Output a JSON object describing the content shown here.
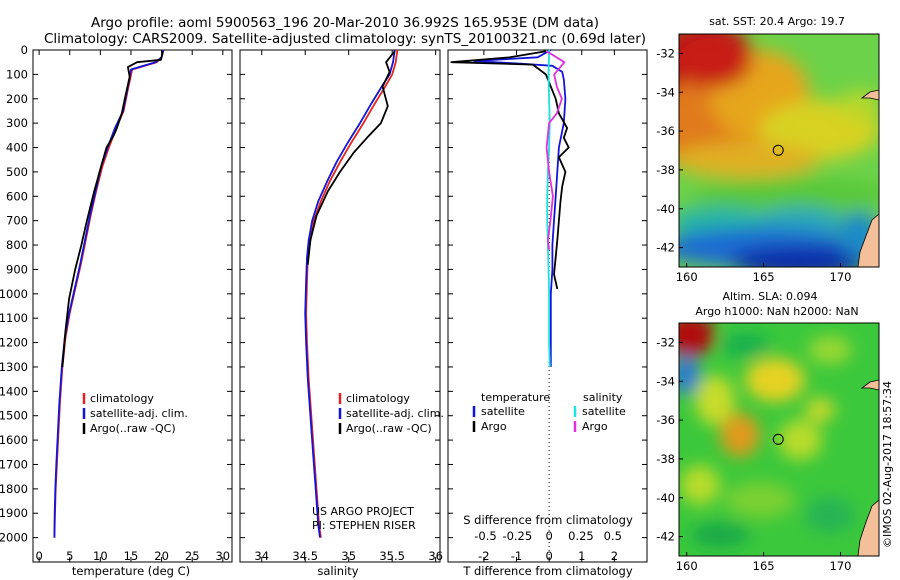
{
  "header": {
    "line1": "Argo profile: aoml 5900563_196 20-Mar-2010 36.992S 165.953E (DM data)",
    "line2": "Climatology: CARS2009. Satellite-adjusted climatology: synTS_20100321.nc (0.69d later)"
  },
  "colors": {
    "climatology": "#e52222",
    "satellite": "#1414d8",
    "argo": "#000000",
    "sat_salinity": "#20e0e0",
    "argo_salinity": "#e030e0"
  },
  "chart_data": [
    {
      "type": "line",
      "name": "temperature-profile",
      "xlabel": "temperature (deg C)",
      "ylabel": "depth",
      "xlim": [
        -1,
        31.5
      ],
      "ylim": [
        2100,
        0
      ],
      "xticks": [
        "0",
        "5",
        "10",
        "15",
        "20",
        "25",
        "30"
      ],
      "xtick_values": [
        0,
        5,
        10,
        15,
        20,
        25,
        30
      ],
      "yticks": [
        "0",
        "100",
        "200",
        "300",
        "400",
        "500",
        "600",
        "700",
        "800",
        "900",
        "1000",
        "1100",
        "1200",
        "1300",
        "1400",
        "1500",
        "1600",
        "1700",
        "1800",
        "1900",
        "2000"
      ],
      "ytick_values": [
        0,
        100,
        200,
        300,
        400,
        500,
        600,
        700,
        800,
        900,
        1000,
        1100,
        1200,
        1300,
        1400,
        1500,
        1600,
        1700,
        1800,
        1900,
        2000
      ],
      "legend": [
        "climatology",
        "satellite-adj. clim.",
        "Argo(..raw -QC)"
      ],
      "series": [
        {
          "name": "climatology",
          "color": "#e52222",
          "x": [
            20.3,
            20.0,
            19.2,
            15.2,
            14.6,
            13.8,
            12.6,
            11.4,
            10.3,
            9.3,
            8.4,
            7.6,
            6.8,
            5.9,
            5.0,
            4.3,
            3.8,
            3.4,
            3.1,
            2.9,
            2.7,
            2.6,
            2.55,
            2.5
          ],
          "y": [
            0,
            30,
            50,
            80,
            150,
            250,
            320,
            400,
            480,
            580,
            680,
            780,
            880,
            980,
            1080,
            1180,
            1300,
            1450,
            1600,
            1700,
            1800,
            1900,
            1950,
            2000
          ]
        },
        {
          "name": "satellite-adj. clim.",
          "color": "#1414d8",
          "x": [
            20.3,
            20.0,
            19.0,
            15.0,
            14.5,
            13.7,
            12.4,
            11.2,
            10.1,
            9.2,
            8.3,
            7.5,
            6.7,
            5.8,
            4.9,
            4.2,
            3.7,
            3.3,
            3.0,
            2.8,
            2.65,
            2.55,
            2.5
          ],
          "y": [
            0,
            30,
            50,
            80,
            150,
            250,
            320,
            400,
            480,
            580,
            680,
            780,
            880,
            980,
            1080,
            1180,
            1300,
            1450,
            1600,
            1700,
            1800,
            1900,
            2000
          ]
        },
        {
          "name": "Argo(..raw -QC)",
          "color": "#000000",
          "x": [
            20.2,
            19.9,
            16.0,
            14.5,
            14.8,
            14.0,
            13.5,
            12.7,
            12.2,
            11.0,
            10.2,
            9.0,
            7.8,
            6.9,
            5.9,
            4.9,
            4.3,
            3.8
          ],
          "y": [
            5,
            40,
            50,
            70,
            110,
            200,
            260,
            320,
            350,
            400,
            470,
            580,
            700,
            800,
            900,
            1020,
            1150,
            1300
          ]
        }
      ]
    },
    {
      "type": "line",
      "name": "salinity-profile",
      "xlabel": "salinity",
      "xlim": [
        33.75,
        36.05
      ],
      "ylim": [
        2100,
        0
      ],
      "xticks": [
        "34",
        "34.5",
        "35",
        "35.5",
        "36"
      ],
      "xtick_values": [
        34,
        34.5,
        35,
        35.5,
        36
      ],
      "legend": [
        "climatology",
        "satellite-adj. clim.",
        "Argo(..raw -QC)"
      ],
      "annotation": [
        "US ARGO PROJECT",
        "PI: STEPHEN RISER"
      ],
      "series": [
        {
          "name": "climatology",
          "color": "#e52222",
          "x": [
            35.56,
            35.54,
            35.5,
            35.42,
            35.3,
            35.17,
            35.03,
            34.9,
            34.78,
            34.68,
            34.6,
            34.56,
            34.53,
            34.52,
            34.51,
            34.52,
            34.54,
            34.57,
            34.6,
            34.63,
            34.66,
            34.68
          ],
          "y": [
            0,
            50,
            100,
            150,
            220,
            300,
            380,
            460,
            540,
            620,
            700,
            780,
            850,
            950,
            1080,
            1200,
            1350,
            1500,
            1650,
            1800,
            1950,
            2000
          ]
        },
        {
          "name": "satellite-adj. clim.",
          "color": "#1414d8",
          "x": [
            35.53,
            35.51,
            35.47,
            35.38,
            35.26,
            35.13,
            34.99,
            34.86,
            34.75,
            34.65,
            34.58,
            34.54,
            34.52,
            34.51,
            34.5,
            34.51,
            34.53,
            34.56,
            34.59,
            34.62,
            34.65,
            34.67
          ],
          "y": [
            0,
            50,
            100,
            150,
            220,
            300,
            380,
            460,
            540,
            620,
            700,
            780,
            850,
            950,
            1080,
            1200,
            1350,
            1500,
            1650,
            1800,
            1950,
            2000
          ]
        },
        {
          "name": "Argo(..raw -QC)",
          "color": "#000000",
          "x": [
            35.53,
            35.43,
            35.47,
            35.39,
            35.45,
            35.37,
            35.21,
            35.06,
            34.9,
            34.76,
            34.63,
            34.56,
            34.53
          ],
          "y": [
            5,
            50,
            90,
            150,
            230,
            300,
            360,
            420,
            500,
            580,
            680,
            780,
            880
          ]
        }
      ]
    },
    {
      "type": "line",
      "name": "difference-from-climatology",
      "xlabel": "T difference from climatology",
      "xlabel_top": "S difference from climatology",
      "xlim": [
        -3.1,
        3.0
      ],
      "ylim": [
        2100,
        0
      ],
      "xticks_T": [
        "-2",
        "-1",
        "0",
        "1",
        "2"
      ],
      "xtick_values_T": [
        -2,
        -1,
        0,
        1,
        2
      ],
      "xticks_S": [
        "-0.5",
        "-0.25",
        "0",
        "0.25",
        "0.5"
      ],
      "xtick_values_S": [
        -0.5,
        -0.25,
        0,
        0.25,
        0.5
      ],
      "legend_temperature_title": "temperature",
      "legend_salinity_title": "salinity",
      "legend_temperature": [
        "satellite",
        "Argo"
      ],
      "legend_salinity": [
        "satellite",
        "Argo"
      ],
      "series": [
        {
          "name": "temperature satellite",
          "color": "#1414d8",
          "axis": "T",
          "x": [
            0.05,
            -0.35,
            -2.3,
            -1.0,
            0.1,
            0.4,
            0.45,
            0.5,
            0.45,
            0.3,
            0.25,
            0.2,
            0.15,
            0.1,
            0.1,
            0.05,
            0.05,
            0.05
          ],
          "y": [
            0,
            30,
            45,
            55,
            65,
            90,
            120,
            200,
            300,
            400,
            500,
            600,
            700,
            800,
            900,
            1000,
            1200,
            1300
          ]
        },
        {
          "name": "temperature Argo",
          "color": "#000000",
          "axis": "T",
          "x": [
            -0.1,
            -1.2,
            -3.0,
            -0.5,
            -0.1,
            0.05,
            0.2,
            0.3,
            0.55,
            0.45,
            0.6,
            0.3,
            0.5,
            0.4,
            0.35,
            0.3,
            0.25,
            0.2,
            0.15,
            0.25
          ],
          "y": [
            5,
            30,
            50,
            60,
            100,
            150,
            200,
            260,
            320,
            360,
            400,
            440,
            500,
            560,
            620,
            700,
            780,
            850,
            920,
            980
          ]
        },
        {
          "name": "salinity satellite",
          "color": "#20e0e0",
          "axis": "S",
          "x": [
            0.0,
            -0.005,
            0.0,
            0.005,
            0.0,
            -0.01,
            -0.015,
            -0.015,
            -0.01,
            -0.005,
            0.0,
            0.0,
            0.005
          ],
          "y": [
            0,
            100,
            200,
            300,
            400,
            500,
            600,
            700,
            800,
            900,
            1000,
            1200,
            1300
          ]
        },
        {
          "name": "salinity Argo",
          "color": "#e030e0",
          "axis": "S",
          "x": [
            -0.02,
            0.12,
            0.04,
            0.06,
            0.1,
            0.06,
            0.0,
            -0.02,
            0.0,
            0.03,
            0.01,
            -0.01,
            0.0
          ],
          "y": [
            5,
            50,
            100,
            150,
            200,
            260,
            300,
            400,
            500,
            600,
            700,
            780,
            820
          ]
        }
      ]
    },
    {
      "type": "heatmap",
      "name": "sst-map",
      "title": "sat. SST: 20.4 Argo: 19.7",
      "xlim": [
        159.5,
        172.5
      ],
      "ylim": [
        -43,
        -31
      ],
      "xticks": [
        "160",
        "165",
        "170"
      ],
      "xtick_values": [
        160,
        165,
        170
      ],
      "yticks": [
        "-32",
        "-34",
        "-36",
        "-38",
        "-40",
        "-42"
      ],
      "ytick_values": [
        -32,
        -34,
        -36,
        -38,
        -40,
        -42
      ],
      "marker": {
        "lon": 165.95,
        "lat": -36.99
      }
    },
    {
      "type": "heatmap",
      "name": "sla-map",
      "title": "Altim. SLA: 0.094",
      "subtitle": "Argo h1000: NaN h2000: NaN",
      "xlim": [
        159.5,
        172.5
      ],
      "ylim": [
        -43,
        -31
      ],
      "xticks": [
        "160",
        "165",
        "170"
      ],
      "xtick_values": [
        160,
        165,
        170
      ],
      "yticks": [
        "-32",
        "-34",
        "-36",
        "-38",
        "-40",
        "-42"
      ],
      "ytick_values": [
        -32,
        -34,
        -36,
        -38,
        -40,
        -42
      ],
      "marker": {
        "lon": 165.95,
        "lat": -36.99
      }
    }
  ],
  "footer": {
    "stamp": "©IMOS 02-Aug-2017 18:57:34"
  }
}
